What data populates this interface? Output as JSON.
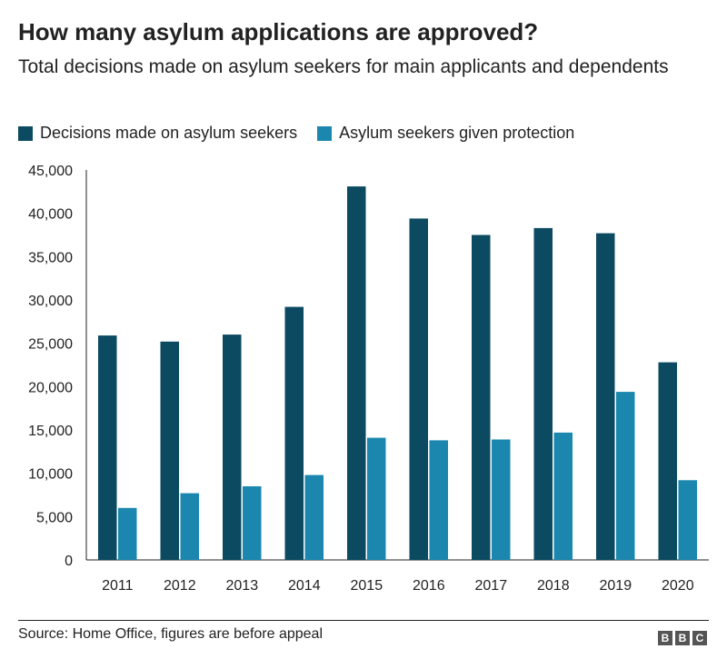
{
  "header": {
    "title": "How many asylum applications are approved?",
    "subtitle": "Total decisions made on asylum seekers for main applicants and dependents"
  },
  "legend": {
    "items": [
      {
        "label": "Decisions made on asylum seekers",
        "color": "#0b4a60"
      },
      {
        "label": "Asylum seekers given protection",
        "color": "#1b87ae"
      }
    ]
  },
  "chart_data": {
    "type": "bar",
    "title": "How many asylum applications are approved?",
    "subtitle": "Total decisions made on asylum seekers for main applicants and dependents",
    "xlabel": "",
    "ylabel": "",
    "categories": [
      "2011",
      "2012",
      "2013",
      "2014",
      "2015",
      "2016",
      "2017",
      "2018",
      "2019",
      "2020"
    ],
    "series": [
      {
        "name": "Decisions made on asylum seekers",
        "color": "#0b4a60",
        "values": [
          25900,
          25200,
          26000,
          29200,
          43100,
          39400,
          37500,
          38300,
          37700,
          22800
        ]
      },
      {
        "name": "Asylum seekers given protection",
        "color": "#1b87ae",
        "values": [
          6000,
          7700,
          8500,
          9800,
          14100,
          13800,
          13900,
          14700,
          19400,
          9200
        ]
      }
    ],
    "ylim": [
      0,
      45000
    ],
    "yticks": [
      0,
      5000,
      10000,
      15000,
      20000,
      25000,
      30000,
      35000,
      40000,
      45000
    ],
    "ytick_labels": [
      "0",
      "5,000",
      "10,000",
      "15,000",
      "20,000",
      "25,000",
      "30,000",
      "35,000",
      "40,000",
      "45,000"
    ],
    "grid": false,
    "legend_position": "top-left"
  },
  "footer": {
    "source": "Source: Home Office, figures are before appeal",
    "logo_letters": [
      "B",
      "B",
      "C"
    ]
  }
}
